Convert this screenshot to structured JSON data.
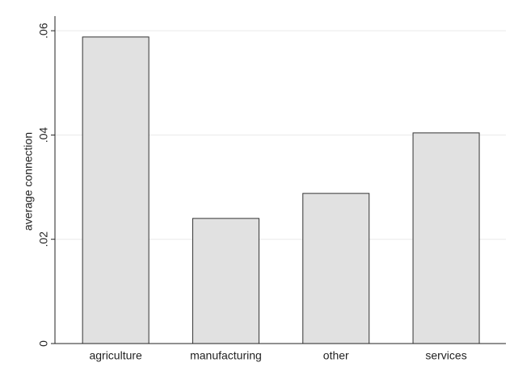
{
  "chart_data": {
    "type": "bar",
    "y_label": "average connection",
    "categories": [
      "agriculture",
      "manufacturing",
      "other",
      "services"
    ],
    "values": [
      0.0588,
      0.024,
      0.0288,
      0.0404
    ],
    "color": "#e1e1e1",
    "ylim": [
      0,
      0.0628
    ],
    "yticks": [
      0,
      {
        "value": 0.02,
        "label": ".02"
      },
      {
        "value": 0.04,
        "label": ".04"
      },
      {
        "value": 0.06,
        "label": ".06"
      }
    ],
    "grid": true
  }
}
